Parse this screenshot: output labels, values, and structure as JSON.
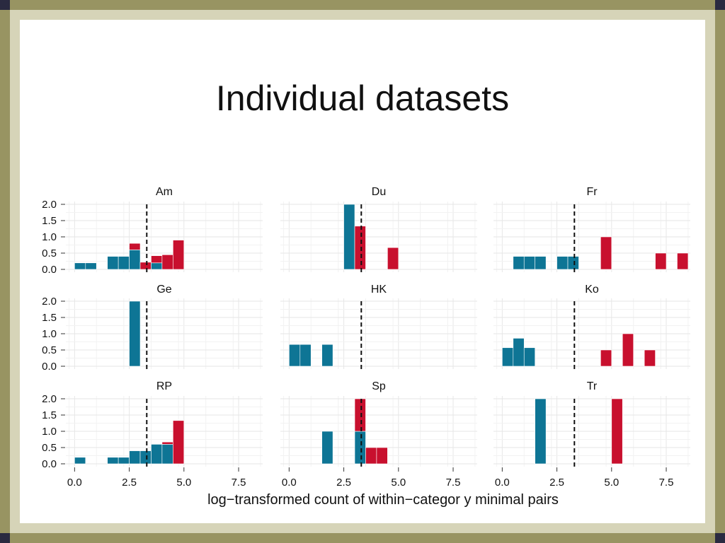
{
  "title": "Individual datasets",
  "colors": {
    "blue": "#0e7595",
    "red": "#c8102e",
    "vline": "#111111"
  },
  "chart_data": {
    "type": "bar",
    "layout": "facet-grid 3x3 histograms, shared axes",
    "xlabel": "log−transformed count of within−categor y minimal pairs",
    "ylabel": "",
    "xlim": [
      -0.4,
      8.6
    ],
    "ylim": [
      0,
      2.0
    ],
    "x_ticks": [
      "0.0",
      "2.5",
      "5.0",
      "7.5"
    ],
    "x_tick_values": [
      0,
      2.5,
      5,
      7.5
    ],
    "y_ticks": [
      "0.0",
      "0.5",
      "1.0",
      "1.5",
      "2.0"
    ],
    "y_tick_values": [
      0,
      0.5,
      1,
      1.5,
      2
    ],
    "bin_width": 0.5,
    "vline_x": 3.3,
    "grid": true,
    "panels": [
      {
        "name": "Am",
        "bars": [
          {
            "x": 0.25,
            "blue": 0.2,
            "red": 0
          },
          {
            "x": 0.75,
            "blue": 0.2,
            "red": 0
          },
          {
            "x": 1.75,
            "blue": 0.4,
            "red": 0
          },
          {
            "x": 2.25,
            "blue": 0.4,
            "red": 0
          },
          {
            "x": 2.75,
            "blue": 0.6,
            "red": 0.2
          },
          {
            "x": 3.25,
            "blue": 0,
            "red": 0.22
          },
          {
            "x": 3.75,
            "blue": 0.2,
            "red": 0.22
          },
          {
            "x": 4.25,
            "blue": 0,
            "red": 0.45
          },
          {
            "x": 4.75,
            "blue": 0,
            "red": 0.9
          }
        ]
      },
      {
        "name": "Du",
        "bars": [
          {
            "x": 2.75,
            "blue": 2.0,
            "red": 0
          },
          {
            "x": 3.25,
            "blue": 0,
            "red": 1.33
          },
          {
            "x": 4.75,
            "blue": 0,
            "red": 0.67
          }
        ]
      },
      {
        "name": "Fr",
        "bars": [
          {
            "x": 0.75,
            "blue": 0.4,
            "red": 0
          },
          {
            "x": 1.25,
            "blue": 0.4,
            "red": 0
          },
          {
            "x": 1.75,
            "blue": 0.4,
            "red": 0
          },
          {
            "x": 2.75,
            "blue": 0.4,
            "red": 0
          },
          {
            "x": 3.25,
            "blue": 0.4,
            "red": 0
          },
          {
            "x": 4.75,
            "blue": 0,
            "red": 1.0
          },
          {
            "x": 7.25,
            "blue": 0,
            "red": 0.5
          },
          {
            "x": 8.25,
            "blue": 0,
            "red": 0.5
          }
        ]
      },
      {
        "name": "Ge",
        "bars": [
          {
            "x": 2.75,
            "blue": 2.0,
            "red": 0
          }
        ]
      },
      {
        "name": "HK",
        "bars": [
          {
            "x": 0.25,
            "blue": 0.67,
            "red": 0
          },
          {
            "x": 0.75,
            "blue": 0.67,
            "red": 0
          },
          {
            "x": 1.75,
            "blue": 0.67,
            "red": 0
          }
        ]
      },
      {
        "name": "Ko",
        "bars": [
          {
            "x": 0.25,
            "blue": 0.57,
            "red": 0
          },
          {
            "x": 0.75,
            "blue": 0.86,
            "red": 0
          },
          {
            "x": 1.25,
            "blue": 0.57,
            "red": 0
          },
          {
            "x": 4.75,
            "blue": 0,
            "red": 0.5
          },
          {
            "x": 5.75,
            "blue": 0,
            "red": 1.0
          },
          {
            "x": 6.75,
            "blue": 0,
            "red": 0.5
          }
        ]
      },
      {
        "name": "RP",
        "bars": [
          {
            "x": 0.25,
            "blue": 0.2,
            "red": 0
          },
          {
            "x": 1.75,
            "blue": 0.2,
            "red": 0
          },
          {
            "x": 2.25,
            "blue": 0.2,
            "red": 0
          },
          {
            "x": 2.75,
            "blue": 0.4,
            "red": 0
          },
          {
            "x": 3.25,
            "blue": 0.4,
            "red": 0
          },
          {
            "x": 3.75,
            "blue": 0.6,
            "red": 0
          },
          {
            "x": 4.25,
            "blue": 0.6,
            "red": 0.07
          },
          {
            "x": 4.75,
            "blue": 0,
            "red": 1.33
          }
        ]
      },
      {
        "name": "Sp",
        "bars": [
          {
            "x": 1.75,
            "blue": 1.0,
            "red": 0
          },
          {
            "x": 3.25,
            "blue": 1.0,
            "red": 1.0
          },
          {
            "x": 3.75,
            "blue": 0,
            "red": 0.5
          },
          {
            "x": 4.25,
            "blue": 0,
            "red": 0.5
          }
        ]
      },
      {
        "name": "Tr",
        "bars": [
          {
            "x": 1.75,
            "blue": 2.0,
            "red": 0
          },
          {
            "x": 5.25,
            "blue": 0,
            "red": 2.0
          }
        ]
      }
    ]
  }
}
